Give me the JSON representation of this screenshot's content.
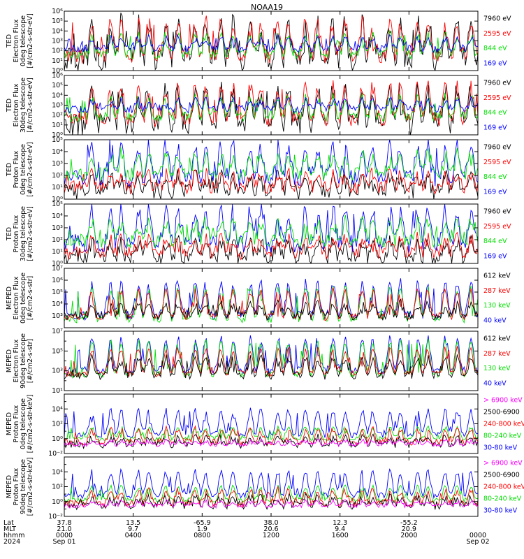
{
  "title": "NOAA19",
  "colors": {
    "black": "#000000",
    "red": "#ff0000",
    "green": "#00e000",
    "blue": "#0000ff",
    "magenta": "#ff00ff",
    "frame": "#000000"
  },
  "chart_data": [
    {
      "type": "line",
      "ylabel": [
        "TED",
        "Electron Flux",
        "0deg telescope",
        "[#/cm2-s-str-eV]"
      ],
      "yscale": "log",
      "ylim_exp": [
        0,
        6
      ],
      "tick_exps": [
        0,
        1,
        2,
        3,
        4,
        5,
        6
      ],
      "tick_labels": [
        "10⁰",
        "10¹",
        "10²",
        "10³",
        "10⁴",
        "10⁵",
        "10⁶"
      ],
      "series": [
        {
          "name": "7960 eV",
          "color": "#000000",
          "base": 1.2,
          "peak": 4.6,
          "noise": 1.3
        },
        {
          "name": "2595 eV",
          "color": "#ff0000",
          "base": 1.5,
          "peak": 5.0,
          "noise": 0.8
        },
        {
          "name": "844 eV",
          "color": "#00e000",
          "base": 1.6,
          "peak": 3.6,
          "noise": 0.5
        },
        {
          "name": "169 eV",
          "color": "#0000ff",
          "base": 2.2,
          "peak": 3.3,
          "noise": 0.4
        }
      ]
    },
    {
      "type": "line",
      "ylabel": [
        "TED",
        "Electron Flux",
        "30deg telescope",
        "[#/cm2-s-str-eV]"
      ],
      "yscale": "log",
      "ylim_exp": [
        0,
        6
      ],
      "tick_exps": [
        0,
        1,
        2,
        3,
        4,
        5,
        6
      ],
      "tick_labels": [
        "10⁰",
        "10¹",
        "10²",
        "10³",
        "10⁴",
        "10⁵",
        "10⁶"
      ],
      "series": [
        {
          "name": "7960 eV",
          "color": "#000000",
          "base": 1.1,
          "peak": 4.5,
          "noise": 1.2
        },
        {
          "name": "2595 eV",
          "color": "#ff0000",
          "base": 1.6,
          "peak": 4.9,
          "noise": 0.8
        },
        {
          "name": "844 eV",
          "color": "#00e000",
          "base": 1.8,
          "peak": 3.8,
          "noise": 0.5
        },
        {
          "name": "169 eV",
          "color": "#0000ff",
          "base": 2.6,
          "peak": 3.5,
          "noise": 0.4
        }
      ]
    },
    {
      "type": "line",
      "ylabel": [
        "TED",
        "Proton Flux",
        "0deg telescope",
        "[#/cm2-s-str-eV]"
      ],
      "yscale": "log",
      "ylim_exp": [
        0,
        5
      ],
      "tick_exps": [
        0,
        1,
        2,
        3,
        4,
        5
      ],
      "tick_labels": [
        "10⁰",
        "10¹",
        "10²",
        "10³",
        "10⁴",
        "10⁵"
      ],
      "series": [
        {
          "name": "7960 eV",
          "color": "#000000",
          "base": 0.6,
          "peak": 2.0,
          "noise": 0.7
        },
        {
          "name": "2595 eV",
          "color": "#ff0000",
          "base": 1.0,
          "peak": 2.2,
          "noise": 0.6
        },
        {
          "name": "169 eV",
          "color": "#0000ff",
          "base": 1.8,
          "peak": 4.6,
          "noise": 0.8
        },
        {
          "name": "844 eV",
          "color": "#00e000",
          "base": 2.1,
          "peak": 3.8,
          "noise": 0.6
        }
      ]
    },
    {
      "type": "line",
      "ylabel": [
        "TED",
        "Proton Flux",
        "30deg telescope",
        "[#/cm2-s-str-eV]"
      ],
      "yscale": "log",
      "ylim_exp": [
        0,
        5
      ],
      "tick_exps": [
        0,
        1,
        2,
        3,
        4,
        5
      ],
      "tick_labels": [
        "10⁰",
        "10¹",
        "10²",
        "10³",
        "10⁴",
        "10⁵"
      ],
      "series": [
        {
          "name": "7960 eV",
          "color": "#000000",
          "base": 0.5,
          "peak": 1.8,
          "noise": 0.7
        },
        {
          "name": "2595 eV",
          "color": "#ff0000",
          "base": 0.9,
          "peak": 2.1,
          "noise": 0.6
        },
        {
          "name": "169 eV",
          "color": "#0000ff",
          "base": 1.7,
          "peak": 4.5,
          "noise": 0.8
        },
        {
          "name": "844 eV",
          "color": "#00e000",
          "base": 1.9,
          "peak": 3.5,
          "noise": 0.6
        }
      ]
    },
    {
      "type": "line",
      "ylabel": [
        "MEPED",
        "Electron Flux",
        "0deg telescope",
        "[#/cm2-s-str]"
      ],
      "yscale": "log",
      "ylim_exp": [
        2,
        7
      ],
      "tick_exps": [
        3,
        4,
        5,
        6,
        7
      ],
      "tick_labels": [
        "10³",
        "10⁴",
        "10⁵",
        "10⁶",
        "10⁷"
      ],
      "series": [
        {
          "name": "40 keV",
          "color": "#0000ff",
          "base": 3.0,
          "peak": 5.8,
          "noise": 0.4
        },
        {
          "name": "130 keV",
          "color": "#00e000",
          "base": 2.7,
          "peak": 5.3,
          "noise": 0.3
        },
        {
          "name": "287 keV",
          "color": "#ff0000",
          "base": 2.9,
          "peak": 5.1,
          "noise": 0.3
        },
        {
          "name": "612 keV",
          "color": "#000000",
          "base": 3.0,
          "peak": 4.0,
          "noise": 0.4
        }
      ]
    },
    {
      "type": "line",
      "ylabel": [
        "MEPED",
        "Electron Flux",
        "90deg telescope",
        "[#/cm2-s-str]"
      ],
      "yscale": "log",
      "ylim_exp": [
        1,
        7
      ],
      "tick_exps": [
        1,
        3,
        5,
        7
      ],
      "tick_labels": [
        "10¹",
        "10³",
        "10⁵",
        "10⁷"
      ],
      "series": [
        {
          "name": "40 keV",
          "color": "#0000ff",
          "base": 3.0,
          "peak": 6.3,
          "noise": 0.4
        },
        {
          "name": "130 keV",
          "color": "#00e000",
          "base": 2.6,
          "peak": 6.0,
          "noise": 0.3
        },
        {
          "name": "287 keV",
          "color": "#ff0000",
          "base": 2.7,
          "peak": 5.2,
          "noise": 0.3
        },
        {
          "name": "612 keV",
          "color": "#000000",
          "base": 2.5,
          "peak": 4.3,
          "noise": 0.4
        }
      ]
    },
    {
      "type": "line",
      "ylabel": [
        "MEPED",
        "Proton Flux",
        "0deg telescope",
        "[#/cm2-s-str-keV]"
      ],
      "yscale": "log",
      "ylim_exp": [
        -2,
        6
      ],
      "tick_exps": [
        -2,
        0,
        2,
        4
      ],
      "tick_labels": [
        "10⁻²",
        "10⁰",
        "10²",
        "10⁴"
      ],
      "series": [
        {
          "name": "30-80 keV",
          "color": "#0000ff",
          "base": 0.5,
          "peak": 3.8,
          "noise": 0.4
        },
        {
          "name": "80-240 keV",
          "color": "#00e000",
          "base": 0.0,
          "peak": 1.5,
          "noise": 0.3
        },
        {
          "name": "240-800 keV",
          "color": "#ff0000",
          "base": -0.5,
          "peak": 1.2,
          "noise": 0.5
        },
        {
          "name": "2500-6900",
          "color": "#000000",
          "base": -0.8,
          "peak": 0.2,
          "noise": 0.5
        },
        {
          "name": "> 6900 keV",
          "color": "#ff00ff",
          "base": -0.8,
          "peak": -0.3,
          "noise": 0.3
        }
      ]
    },
    {
      "type": "line",
      "ylabel": [
        "MEPED",
        "Proton Flux",
        "90deg telescope",
        "[#/cm2-s-str-keV]"
      ],
      "yscale": "log",
      "ylim_exp": [
        -2,
        6
      ],
      "tick_exps": [
        -2,
        0,
        2,
        4
      ],
      "tick_labels": [
        "10⁻²",
        "10⁰",
        "10²",
        "10⁴"
      ],
      "series": [
        {
          "name": "30-80 keV",
          "color": "#0000ff",
          "base": 0.8,
          "peak": 4.0,
          "noise": 0.4
        },
        {
          "name": "80-240 keV",
          "color": "#00e000",
          "base": 0.2,
          "peak": 2.0,
          "noise": 0.3
        },
        {
          "name": "240-800 keV",
          "color": "#ff0000",
          "base": -0.3,
          "peak": 1.5,
          "noise": 0.5
        },
        {
          "name": "2500-6900",
          "color": "#000000",
          "base": -0.5,
          "peak": 0.5,
          "noise": 0.6
        },
        {
          "name": "> 6900 keV",
          "color": "#ff00ff",
          "base": -0.6,
          "peak": 0.0,
          "noise": 0.3
        }
      ]
    }
  ],
  "x_axis": {
    "row_labels": [
      "Lat",
      "MLT",
      "hhmm",
      "2024"
    ],
    "ticks": [
      {
        "hour": 0,
        "lat": "37.8",
        "mlt": "21.0",
        "hhmm": "0000",
        "date": "Sep 01"
      },
      {
        "hour": 4,
        "lat": "13.5",
        "mlt": "9.7",
        "hhmm": "0400",
        "date": ""
      },
      {
        "hour": 8,
        "lat": "-65.9",
        "mlt": "1.9",
        "hhmm": "0800",
        "date": ""
      },
      {
        "hour": 12,
        "lat": "38.0",
        "mlt": "20.6",
        "hhmm": "1200",
        "date": ""
      },
      {
        "hour": 16,
        "lat": "12.3",
        "mlt": "9.4",
        "hhmm": "1600",
        "date": ""
      },
      {
        "hour": 20,
        "lat": "-55.2",
        "mlt": "20.9",
        "hhmm": "2000",
        "date": ""
      },
      {
        "hour": 24,
        "lat": "",
        "mlt": "",
        "hhmm": "0000",
        "date": "Sep 02"
      }
    ],
    "range_hours": [
      0,
      24
    ],
    "pass_hours": [
      1.6,
      2.7,
      3.3,
      4.3,
      4.9,
      5.9,
      6.6,
      7.6,
      8.2,
      9.1,
      9.8,
      10.8,
      11.4,
      12.4,
      13.0,
      14.0,
      14.7,
      15.6,
      16.3,
      17.3,
      17.9,
      18.9,
      19.5,
      20.5,
      21.1,
      22.1,
      22.8,
      23.6
    ]
  }
}
